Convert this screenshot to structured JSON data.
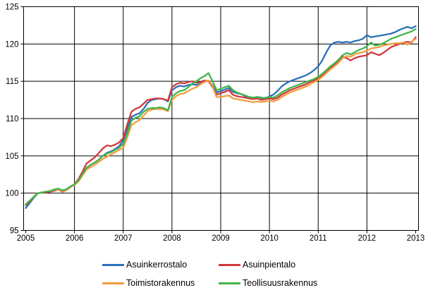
{
  "chart_data": {
    "type": "line",
    "title": "",
    "xlabel": "",
    "ylabel": "",
    "grid": true,
    "legend_position": "bottom",
    "x_axis": {
      "tick_labels": [
        "2005",
        "2006",
        "2007",
        "2008",
        "2009",
        "2010",
        "2011",
        "2012",
        "2013"
      ],
      "unit": "year",
      "points_per_year": 12
    },
    "y_axis": {
      "min": 95,
      "max": 125,
      "tick_step": 5,
      "tick_labels": [
        "95",
        "100",
        "105",
        "110",
        "115",
        "120",
        "125"
      ]
    },
    "series": [
      {
        "name": "Asuinkerrostalo",
        "color": "#2B70B8",
        "values": [
          98.0,
          98.7,
          99.4,
          100.0,
          100.1,
          100.2,
          100.3,
          100.4,
          100.6,
          100.3,
          100.5,
          100.9,
          101.1,
          101.7,
          102.6,
          103.4,
          103.8,
          104.1,
          104.5,
          105.0,
          105.4,
          105.6,
          105.9,
          106.3,
          107.1,
          108.6,
          110.2,
          110.5,
          110.7,
          111.3,
          112.1,
          112.5,
          112.6,
          112.7,
          112.6,
          112.3,
          113.8,
          114.2,
          114.4,
          114.3,
          114.5,
          114.6,
          114.5,
          114.7,
          115.0,
          115.1,
          114.4,
          113.5,
          113.7,
          113.9,
          114.1,
          113.6,
          113.4,
          113.3,
          113.0,
          112.9,
          112.8,
          112.9,
          112.8,
          112.7,
          113.0,
          113.2,
          113.7,
          114.3,
          114.7,
          115.0,
          115.2,
          115.4,
          115.6,
          115.8,
          116.1,
          116.5,
          117.0,
          117.8,
          118.9,
          119.8,
          120.2,
          120.3,
          120.2,
          120.3,
          120.2,
          120.4,
          120.5,
          120.7,
          121.2,
          120.9,
          121.0,
          121.1,
          121.2,
          121.3,
          121.4,
          121.6,
          121.9,
          122.1,
          122.3,
          122.1,
          122.4
        ]
      },
      {
        "name": "Asuinpientalo",
        "color": "#D2383C",
        "values": [
          98.4,
          98.9,
          99.5,
          100.0,
          100.1,
          100.1,
          100.2,
          100.3,
          100.5,
          100.2,
          100.4,
          100.8,
          101.2,
          101.9,
          102.9,
          104.0,
          104.4,
          104.8,
          105.4,
          106.0,
          106.4,
          106.3,
          106.5,
          106.8,
          107.4,
          109.2,
          110.9,
          111.3,
          111.5,
          112.0,
          112.5,
          112.6,
          112.7,
          112.7,
          112.6,
          112.4,
          114.2,
          114.6,
          114.8,
          114.7,
          114.9,
          115.0,
          114.8,
          114.9,
          115.1,
          115.0,
          114.2,
          113.2,
          113.4,
          113.6,
          113.8,
          113.2,
          113.0,
          112.9,
          112.8,
          112.7,
          112.6,
          112.7,
          112.5,
          112.6,
          112.7,
          112.6,
          112.8,
          113.2,
          113.5,
          113.8,
          114.0,
          114.2,
          114.4,
          114.6,
          114.9,
          115.1,
          115.4,
          115.8,
          116.3,
          116.8,
          117.2,
          117.7,
          118.3,
          118.1,
          117.8,
          118.1,
          118.3,
          118.4,
          118.5,
          118.9,
          118.7,
          118.5,
          118.8,
          119.2,
          119.6,
          119.8,
          120.0,
          120.2,
          120.3,
          120.2,
          120.9
        ]
      },
      {
        "name": "Toimistorakennus",
        "color": "#F49B3E",
        "values": [
          98.5,
          99.0,
          99.5,
          100.0,
          100.1,
          100.2,
          100.3,
          100.4,
          100.5,
          100.3,
          100.4,
          100.8,
          101.1,
          101.6,
          102.4,
          103.2,
          103.5,
          103.8,
          104.2,
          104.6,
          104.9,
          105.2,
          105.5,
          105.8,
          106.1,
          107.5,
          109.1,
          109.5,
          109.8,
          110.4,
          111.0,
          111.2,
          111.3,
          111.3,
          111.2,
          111.0,
          112.5,
          113.0,
          113.3,
          113.4,
          113.7,
          114.0,
          114.2,
          114.6,
          114.9,
          115.1,
          114.3,
          112.9,
          112.9,
          113.0,
          113.1,
          112.7,
          112.6,
          112.5,
          112.4,
          112.3,
          112.2,
          112.3,
          112.2,
          112.3,
          112.4,
          112.3,
          112.5,
          112.9,
          113.2,
          113.5,
          113.7,
          113.9,
          114.1,
          114.3,
          114.6,
          114.9,
          115.2,
          115.6,
          116.1,
          116.6,
          117.0,
          117.5,
          118.1,
          118.4,
          118.3,
          118.6,
          118.8,
          118.9,
          119.1,
          119.4,
          119.5,
          119.6,
          119.8,
          119.9,
          120.0,
          120.1,
          120.1,
          120.2,
          119.9,
          120.3,
          120.7
        ]
      },
      {
        "name": "Teollisuusrakennus",
        "color": "#42B54A",
        "values": [
          98.5,
          99.0,
          99.5,
          100.0,
          100.1,
          100.2,
          100.3,
          100.5,
          100.6,
          100.4,
          100.5,
          100.9,
          101.2,
          101.7,
          102.6,
          103.4,
          103.8,
          104.1,
          104.5,
          105.0,
          105.3,
          105.5,
          105.8,
          106.1,
          106.6,
          108.0,
          109.7,
          110.1,
          110.3,
          110.9,
          111.3,
          111.4,
          111.4,
          111.5,
          111.4,
          111.1,
          112.9,
          113.4,
          113.7,
          113.8,
          114.2,
          114.7,
          115.0,
          115.4,
          115.7,
          116.1,
          115.0,
          113.8,
          114.0,
          114.2,
          114.4,
          113.8,
          113.5,
          113.3,
          113.1,
          112.9,
          112.8,
          112.9,
          112.7,
          112.8,
          112.9,
          112.8,
          113.1,
          113.5,
          113.8,
          114.1,
          114.3,
          114.5,
          114.7,
          114.9,
          115.1,
          115.3,
          115.6,
          116.0,
          116.5,
          117.0,
          117.4,
          117.9,
          118.5,
          118.8,
          118.6,
          118.9,
          119.2,
          119.4,
          119.7,
          120.2,
          119.8,
          119.9,
          120.1,
          120.4,
          120.7,
          120.9,
          121.1,
          121.3,
          121.5,
          121.7,
          122.0
        ]
      }
    ],
    "legend_order": [
      0,
      1,
      2,
      3
    ]
  }
}
